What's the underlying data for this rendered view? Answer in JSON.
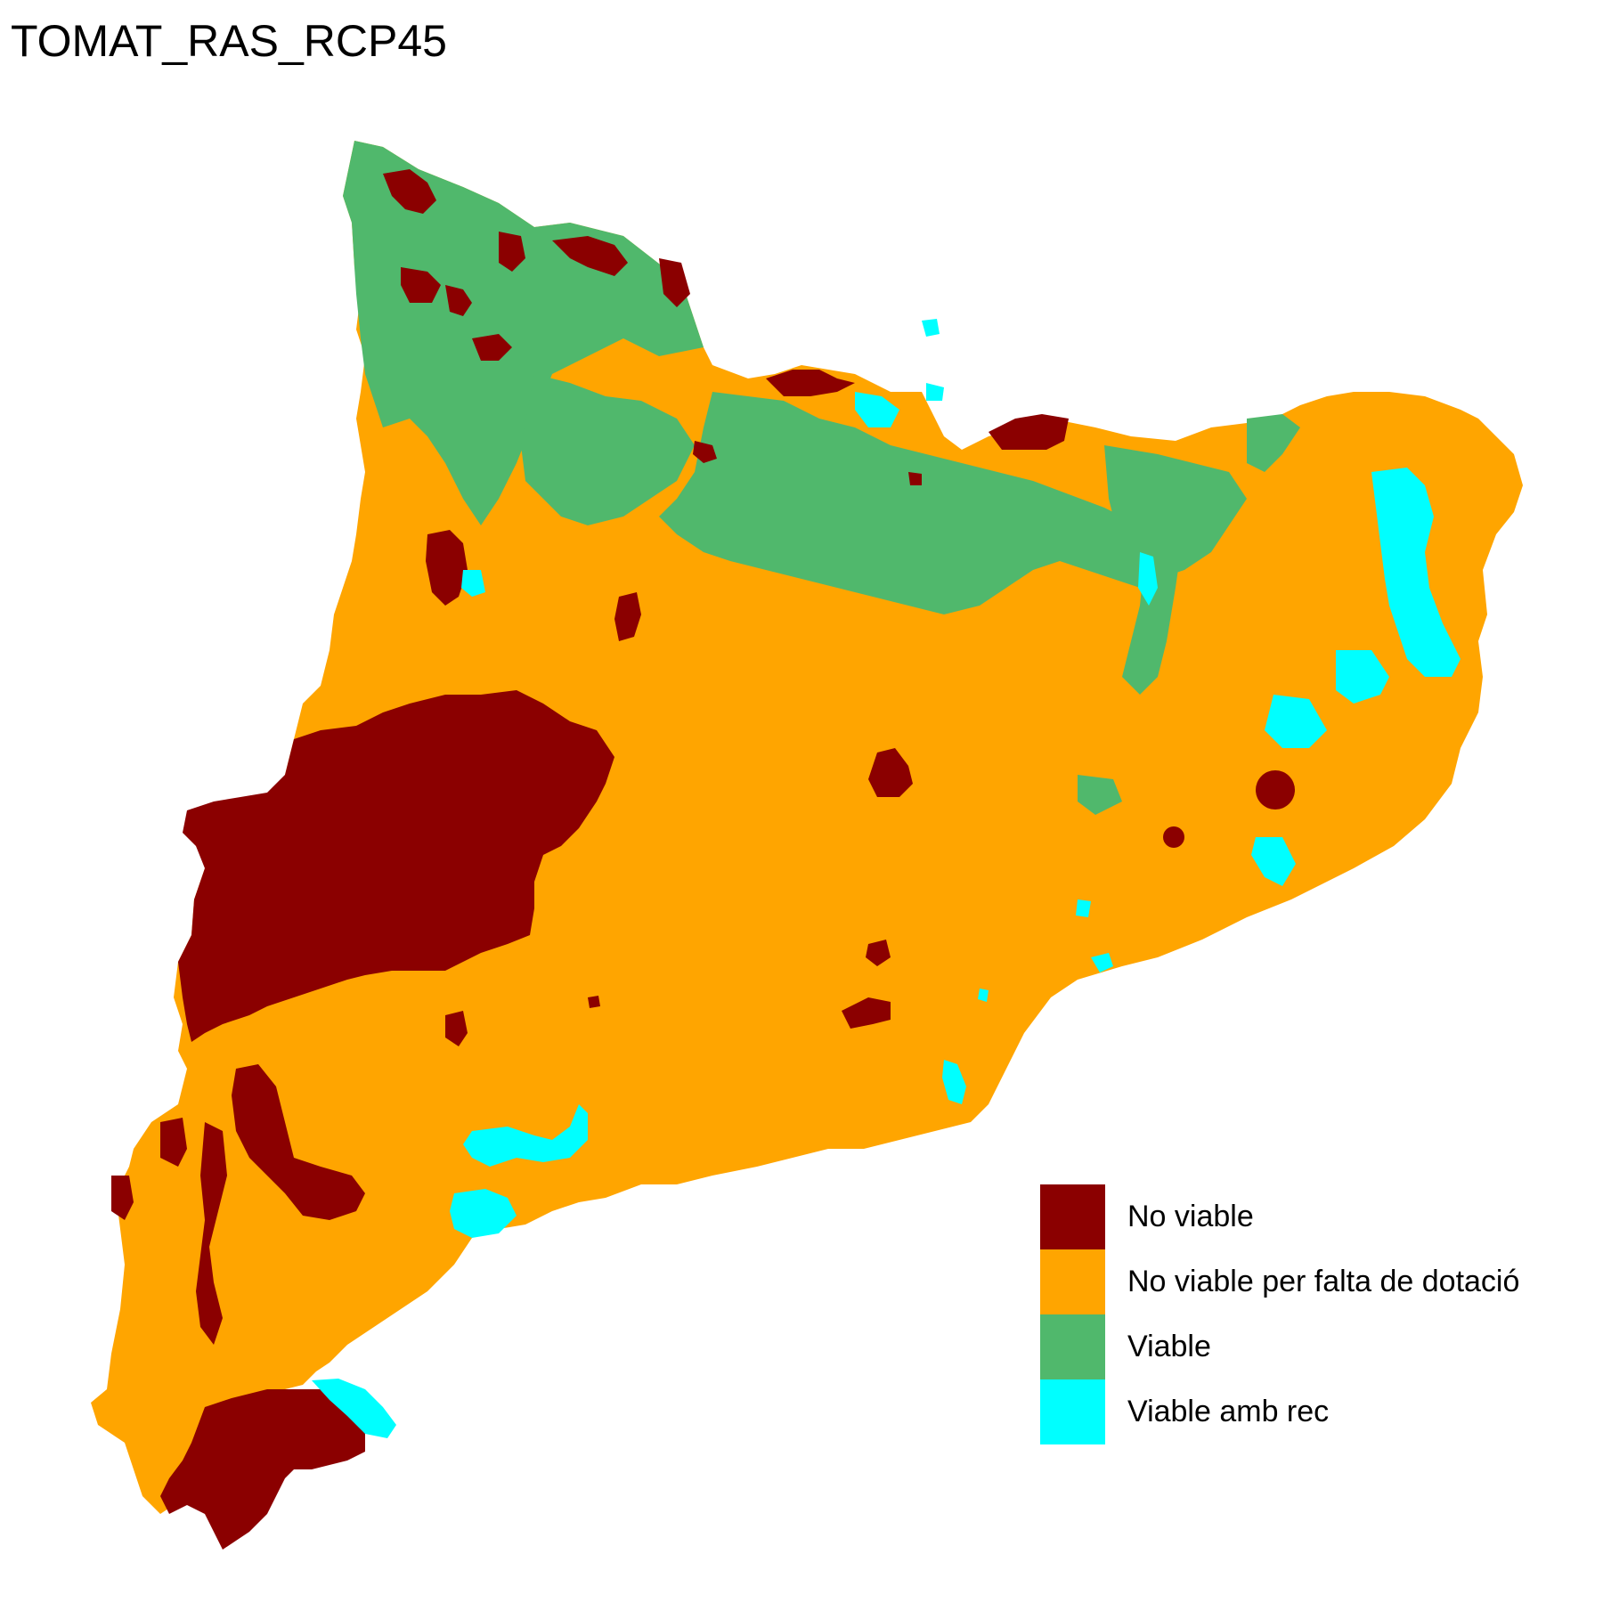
{
  "map": {
    "title": "TOMAT_RAS_RCP45",
    "region_shape": "catalonia-outline"
  },
  "legend": {
    "items": [
      {
        "label": "No viable",
        "color": "#8B0000"
      },
      {
        "label": "No viable per falta de dotació",
        "color": "#FFA500"
      },
      {
        "label": "Viable",
        "color": "#50B86C"
      },
      {
        "label": "Viable amb rec",
        "color": "#00FFFF"
      }
    ]
  }
}
